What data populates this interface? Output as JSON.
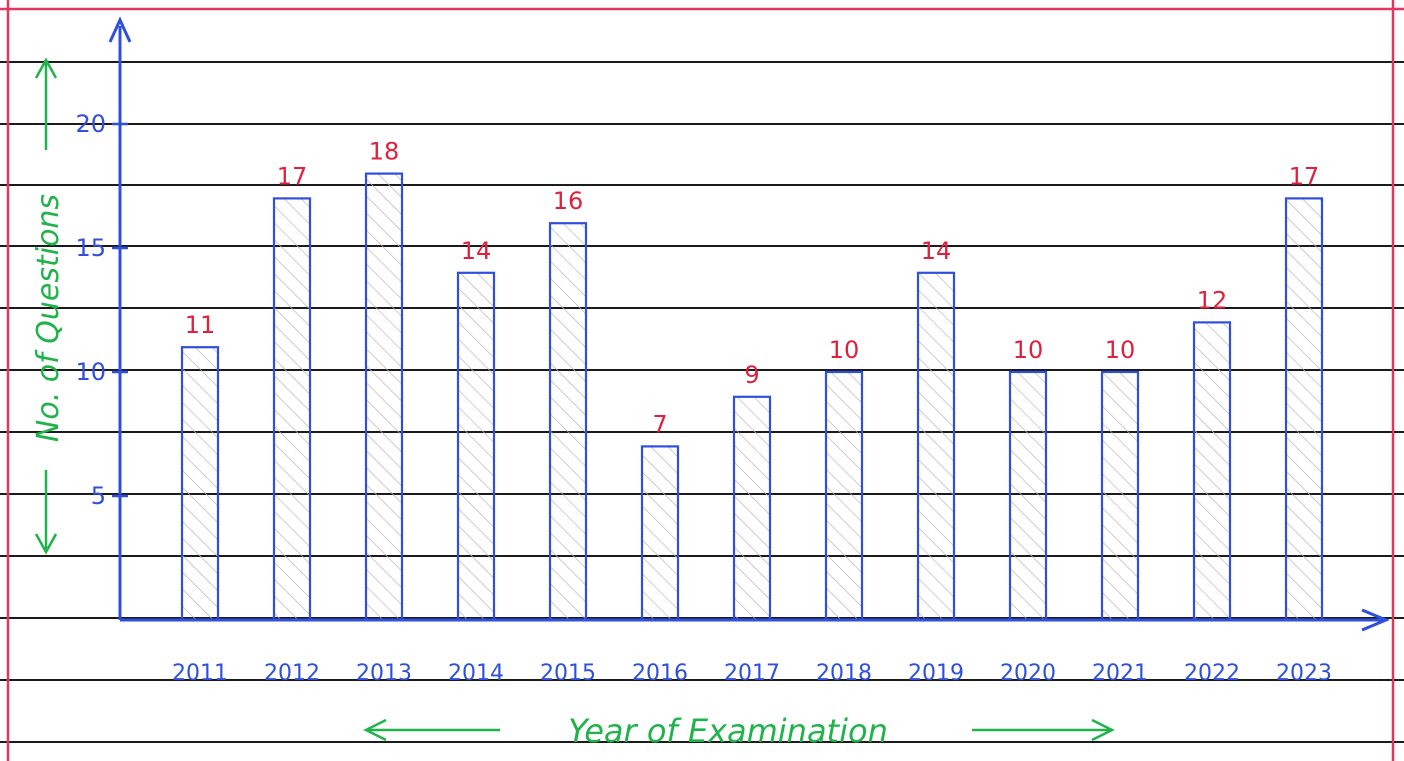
{
  "chart_data": {
    "type": "bar",
    "title": "",
    "xlabel": "Year of Examination",
    "ylabel": "No. of Questions",
    "categories": [
      "2011",
      "2012",
      "2013",
      "2014",
      "2015",
      "2016",
      "2017",
      "2018",
      "2019",
      "2020",
      "2021",
      "2022",
      "2023"
    ],
    "values": [
      11,
      17,
      18,
      14,
      16,
      7,
      9,
      10,
      14,
      10,
      10,
      12,
      17
    ],
    "value_labels": [
      "11",
      "17",
      "18",
      "14",
      "16",
      "7",
      "9",
      "10",
      "14",
      "10",
      "10",
      "12",
      "17"
    ],
    "y_ticks": [
      5,
      10,
      15,
      20
    ],
    "y_tick_labels": [
      "5",
      "10",
      "15",
      "20"
    ],
    "ylim": [
      0,
      20
    ],
    "grid": false,
    "legend": "none",
    "bar_fill": "hatched"
  },
  "colors": {
    "axis": "#2f4fdc",
    "bar_stroke": "#2f4fdc",
    "hatch": "#b8b8b8",
    "value_label": "#e0203c",
    "axis_title": "#1fb34a",
    "ruled_line": "#1b1b1b",
    "margin_line": "#e2365e",
    "paper": "#ffffff"
  }
}
